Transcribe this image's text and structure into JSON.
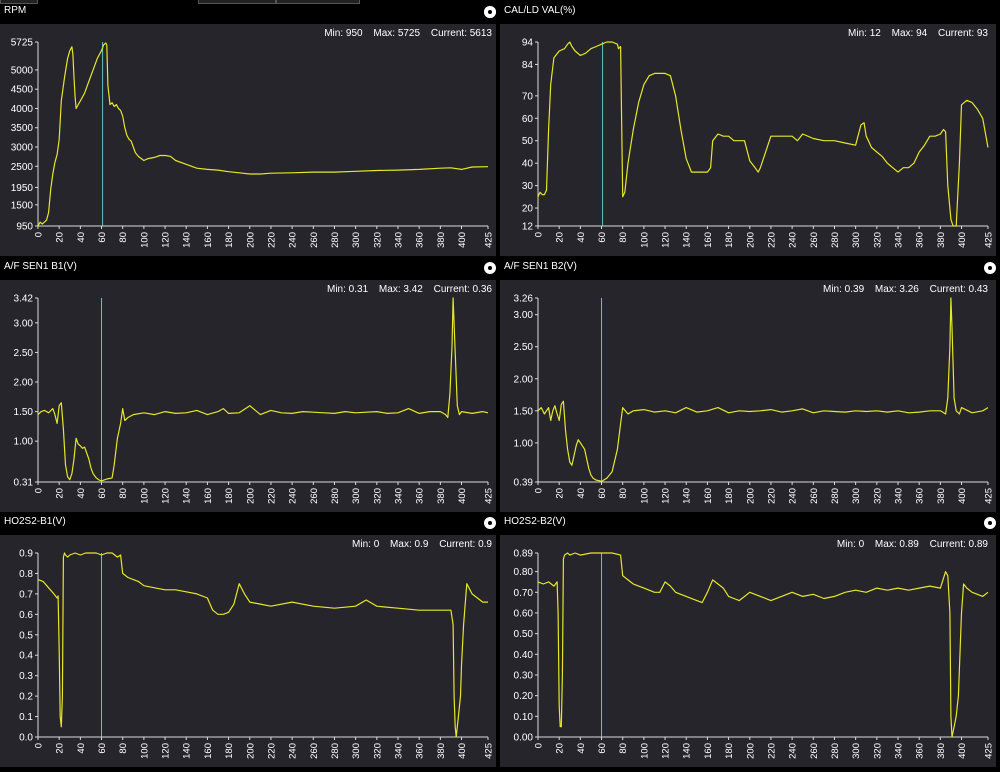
{
  "colors": {
    "background": "#000000",
    "plot_bg": "#25252b",
    "trace": "#e6e62a",
    "cursor": "#5fc7c7",
    "axis": "#dcdcdc"
  },
  "labels": {
    "min": "Min:",
    "max": "Max:",
    "current": "Current:"
  },
  "panels": [
    {
      "title": "RPM",
      "min": "950",
      "max": "5725",
      "current": "5613",
      "icon": "settings-dot-icon"
    },
    {
      "title": "CAL/LD VAL(%)",
      "min": "12",
      "max": "94",
      "current": "93",
      "icon": "settings-dot-icon"
    },
    {
      "title": "A/F SEN1 B1(V)",
      "min": "0.31",
      "max": "3.42",
      "current": "0.36",
      "icon": "settings-dot-icon"
    },
    {
      "title": "A/F SEN1 B2(V)",
      "min": "0.39",
      "max": "3.26",
      "current": "0.43",
      "icon": "settings-dot-icon"
    },
    {
      "title": "HO2S2-B1(V)",
      "min": "0",
      "max": "0.9",
      "current": "0.9",
      "icon": "settings-dot-icon"
    },
    {
      "title": "HO2S2-B2(V)",
      "min": "0",
      "max": "0.89",
      "current": "0.89",
      "icon": "settings-dot-icon"
    }
  ],
  "chart_data": [
    {
      "type": "line",
      "title": "RPM",
      "xlim": [
        0,
        425
      ],
      "ylim": [
        950,
        5725
      ],
      "xticks": [
        0,
        20,
        40,
        60,
        80,
        100,
        120,
        140,
        160,
        180,
        200,
        220,
        240,
        260,
        280,
        300,
        320,
        340,
        360,
        380,
        400,
        425
      ],
      "yticks": [
        {
          "v": 950,
          "t": "950"
        },
        {
          "v": 1500,
          "t": "1500"
        },
        {
          "v": 1950,
          "t": "1950"
        },
        {
          "v": 2500,
          "t": "2500"
        },
        {
          "v": 3000,
          "t": "3000"
        },
        {
          "v": 3500,
          "t": "3500"
        },
        {
          "v": 4000,
          "t": "4000"
        },
        {
          "v": 4500,
          "t": "4500"
        },
        {
          "v": 5000,
          "t": "5000"
        },
        {
          "v": 5725,
          "t": "5725"
        }
      ],
      "cursor_x": 61,
      "x": [
        0,
        2,
        4,
        8,
        10,
        12,
        14,
        16,
        18,
        20,
        22,
        25,
        28,
        30,
        32,
        33,
        34,
        35,
        36,
        38,
        40,
        44,
        48,
        52,
        56,
        60,
        62,
        64,
        65,
        66,
        68,
        70,
        72,
        74,
        76,
        78,
        80,
        82,
        84,
        86,
        88,
        90,
        92,
        95,
        100,
        104,
        110,
        115,
        120,
        125,
        130,
        140,
        150,
        160,
        170,
        180,
        190,
        200,
        210,
        220,
        240,
        260,
        280,
        300,
        320,
        340,
        360,
        380,
        390,
        400,
        410,
        425
      ],
      "y": [
        950,
        1050,
        1000,
        1100,
        1300,
        1900,
        2300,
        2600,
        2800,
        3200,
        4200,
        4800,
        5300,
        5500,
        5600,
        5400,
        4800,
        4300,
        4000,
        4100,
        4200,
        4400,
        4700,
        5000,
        5300,
        5500,
        5650,
        5700,
        5650,
        4600,
        4100,
        4150,
        4050,
        4100,
        4000,
        3950,
        3800,
        3500,
        3300,
        3200,
        3150,
        3000,
        2850,
        2750,
        2650,
        2700,
        2730,
        2780,
        2780,
        2760,
        2650,
        2550,
        2450,
        2420,
        2400,
        2360,
        2330,
        2300,
        2300,
        2320,
        2330,
        2350,
        2350,
        2370,
        2390,
        2400,
        2420,
        2450,
        2460,
        2420,
        2480,
        2490
      ]
    },
    {
      "type": "line",
      "title": "CAL/LD VAL(%)",
      "xlim": [
        0,
        425
      ],
      "ylim": [
        12,
        94
      ],
      "xticks": [
        0,
        20,
        40,
        60,
        80,
        100,
        120,
        140,
        160,
        180,
        200,
        220,
        240,
        260,
        280,
        300,
        320,
        340,
        360,
        380,
        400,
        425
      ],
      "yticks": [
        {
          "v": 12,
          "t": "12"
        },
        {
          "v": 20,
          "t": "20"
        },
        {
          "v": 30,
          "t": "30"
        },
        {
          "v": 40,
          "t": "40"
        },
        {
          "v": 50,
          "t": "50"
        },
        {
          "v": 60,
          "t": "60"
        },
        {
          "v": 70,
          "t": "70"
        },
        {
          "v": 84,
          "t": "84"
        },
        {
          "v": 94,
          "t": "94"
        }
      ],
      "cursor_x": 61,
      "x": [
        0,
        2,
        4,
        6,
        8,
        10,
        12,
        15,
        20,
        25,
        28,
        30,
        32,
        35,
        40,
        45,
        50,
        55,
        60,
        65,
        70,
        75,
        76,
        78,
        80,
        82,
        85,
        90,
        95,
        100,
        105,
        110,
        115,
        120,
        125,
        130,
        135,
        140,
        145,
        150,
        155,
        160,
        163,
        165,
        170,
        175,
        180,
        185,
        190,
        195,
        200,
        205,
        208,
        210,
        220,
        230,
        240,
        245,
        250,
        260,
        270,
        280,
        290,
        300,
        305,
        308,
        310,
        312,
        315,
        320,
        325,
        330,
        335,
        340,
        345,
        350,
        355,
        360,
        365,
        370,
        375,
        380,
        383,
        385,
        387,
        390,
        392,
        395,
        398,
        400,
        405,
        410,
        415,
        420,
        425
      ],
      "y": [
        25,
        27,
        26,
        26,
        28,
        55,
        75,
        87,
        90,
        91,
        93,
        94,
        92,
        90,
        88,
        89,
        91,
        92,
        93,
        94,
        94,
        93,
        91,
        92,
        25,
        27,
        40,
        55,
        67,
        75,
        79,
        80,
        80,
        80,
        79,
        70,
        55,
        42,
        36,
        36,
        36,
        36,
        38,
        50,
        53,
        52,
        52,
        50,
        50,
        50,
        41,
        38,
        36,
        38,
        52,
        52,
        52,
        50,
        53,
        51,
        50,
        50,
        49,
        48,
        57,
        58,
        52,
        50,
        47,
        45,
        43,
        40,
        38,
        36,
        38,
        38,
        40,
        45,
        48,
        52,
        52,
        53,
        55,
        54,
        30,
        15,
        12,
        12,
        40,
        66,
        68,
        67,
        64,
        60,
        47
      ]
    },
    {
      "type": "line",
      "title": "A/F SEN1 B1(V)",
      "xlim": [
        0,
        425
      ],
      "ylim": [
        0.31,
        3.42
      ],
      "xticks": [
        0,
        20,
        40,
        60,
        80,
        100,
        120,
        140,
        160,
        180,
        200,
        220,
        240,
        260,
        280,
        300,
        320,
        340,
        360,
        380,
        400,
        425
      ],
      "yticks": [
        {
          "v": 0.31,
          "t": "0.31"
        },
        {
          "v": 1.0,
          "t": "1.00"
        },
        {
          "v": 1.5,
          "t": "1.50"
        },
        {
          "v": 2.0,
          "t": "2.00"
        },
        {
          "v": 2.5,
          "t": "2.50"
        },
        {
          "v": 3.0,
          "t": "3.00"
        },
        {
          "v": 3.42,
          "t": "3.42"
        }
      ],
      "cursor_x": 60,
      "x": [
        0,
        3,
        6,
        10,
        14,
        16,
        18,
        20,
        22,
        24,
        26,
        28,
        30,
        32,
        34,
        36,
        38,
        40,
        42,
        44,
        46,
        48,
        50,
        52,
        55,
        58,
        60,
        62,
        65,
        70,
        72,
        75,
        78,
        80,
        82,
        85,
        90,
        100,
        110,
        120,
        130,
        140,
        150,
        160,
        170,
        175,
        180,
        190,
        200,
        210,
        220,
        230,
        240,
        250,
        260,
        270,
        280,
        290,
        300,
        310,
        320,
        330,
        340,
        350,
        360,
        370,
        380,
        385,
        387,
        389,
        391,
        392,
        394,
        396,
        398,
        400,
        410,
        420,
        425
      ],
      "y": [
        1.45,
        1.5,
        1.52,
        1.48,
        1.55,
        1.45,
        1.3,
        1.6,
        1.65,
        1.2,
        0.6,
        0.4,
        0.35,
        0.45,
        0.7,
        1.05,
        0.95,
        0.92,
        0.88,
        0.9,
        0.8,
        0.7,
        0.55,
        0.45,
        0.38,
        0.34,
        0.33,
        0.34,
        0.36,
        0.38,
        0.6,
        1.05,
        1.3,
        1.55,
        1.35,
        1.4,
        1.45,
        1.48,
        1.45,
        1.5,
        1.47,
        1.48,
        1.52,
        1.45,
        1.5,
        1.55,
        1.47,
        1.48,
        1.6,
        1.45,
        1.52,
        1.48,
        1.47,
        1.5,
        1.49,
        1.48,
        1.47,
        1.5,
        1.48,
        1.49,
        1.5,
        1.47,
        1.48,
        1.55,
        1.47,
        1.5,
        1.5,
        1.45,
        1.4,
        1.8,
        2.6,
        3.42,
        2.5,
        1.6,
        1.45,
        1.5,
        1.47,
        1.5,
        1.48
      ]
    },
    {
      "type": "line",
      "title": "A/F SEN1 B2(V)",
      "xlim": [
        0,
        425
      ],
      "ylim": [
        0.39,
        3.26
      ],
      "xticks": [
        0,
        20,
        40,
        60,
        80,
        100,
        120,
        140,
        160,
        180,
        200,
        220,
        240,
        260,
        280,
        300,
        320,
        340,
        360,
        380,
        400,
        425
      ],
      "yticks": [
        {
          "v": 0.39,
          "t": "0.39"
        },
        {
          "v": 1.0,
          "t": "1.00"
        },
        {
          "v": 1.5,
          "t": "1.50"
        },
        {
          "v": 2.0,
          "t": "2.00"
        },
        {
          "v": 2.5,
          "t": "2.50"
        },
        {
          "v": 3.0,
          "t": "3.00"
        },
        {
          "v": 3.26,
          "t": "3.26"
        }
      ],
      "cursor_x": 60,
      "x": [
        0,
        3,
        6,
        10,
        12,
        14,
        16,
        18,
        20,
        22,
        24,
        26,
        28,
        30,
        32,
        34,
        36,
        38,
        40,
        42,
        44,
        46,
        48,
        50,
        52,
        55,
        58,
        60,
        62,
        65,
        70,
        75,
        78,
        80,
        85,
        90,
        100,
        110,
        120,
        130,
        140,
        150,
        160,
        170,
        180,
        190,
        200,
        210,
        220,
        230,
        240,
        250,
        260,
        270,
        280,
        290,
        300,
        310,
        320,
        330,
        340,
        350,
        360,
        370,
        380,
        385,
        387,
        389,
        390,
        391,
        393,
        395,
        398,
        400,
        410,
        420,
        425
      ],
      "y": [
        1.5,
        1.55,
        1.45,
        1.55,
        1.35,
        1.5,
        1.58,
        1.45,
        1.35,
        1.6,
        1.65,
        1.2,
        0.9,
        0.7,
        0.65,
        0.8,
        0.95,
        1.05,
        1.0,
        0.95,
        0.9,
        0.75,
        0.6,
        0.5,
        0.45,
        0.42,
        0.41,
        0.4,
        0.42,
        0.45,
        0.55,
        0.9,
        1.3,
        1.55,
        1.45,
        1.5,
        1.52,
        1.48,
        1.5,
        1.47,
        1.55,
        1.48,
        1.5,
        1.55,
        1.47,
        1.5,
        1.49,
        1.5,
        1.52,
        1.48,
        1.5,
        1.53,
        1.47,
        1.5,
        1.49,
        1.48,
        1.5,
        1.49,
        1.5,
        1.48,
        1.5,
        1.47,
        1.48,
        1.5,
        1.5,
        1.45,
        1.7,
        2.5,
        3.26,
        2.8,
        1.7,
        1.5,
        1.45,
        1.55,
        1.47,
        1.5,
        1.55
      ]
    },
    {
      "type": "line",
      "title": "HO2S2-B1(V)",
      "xlim": [
        0,
        425
      ],
      "ylim": [
        0,
        0.9
      ],
      "xticks": [
        0,
        20,
        40,
        60,
        80,
        100,
        120,
        140,
        160,
        180,
        200,
        220,
        240,
        260,
        280,
        300,
        320,
        340,
        360,
        380,
        400,
        425
      ],
      "yticks": [
        {
          "v": 0,
          "t": "0.0"
        },
        {
          "v": 0.1,
          "t": "0.1"
        },
        {
          "v": 0.2,
          "t": "0.2"
        },
        {
          "v": 0.3,
          "t": "0.3"
        },
        {
          "v": 0.4,
          "t": "0.4"
        },
        {
          "v": 0.5,
          "t": "0.5"
        },
        {
          "v": 0.6,
          "t": "0.6"
        },
        {
          "v": 0.7,
          "t": "0.7"
        },
        {
          "v": 0.8,
          "t": "0.8"
        },
        {
          "v": 0.9,
          "t": "0.9"
        }
      ],
      "cursor_x": 60,
      "x": [
        0,
        5,
        10,
        15,
        18,
        19,
        20,
        21,
        22,
        23,
        24,
        25,
        26,
        28,
        30,
        35,
        40,
        45,
        50,
        55,
        60,
        65,
        70,
        75,
        78,
        80,
        85,
        90,
        95,
        100,
        110,
        120,
        130,
        140,
        150,
        160,
        165,
        170,
        175,
        180,
        185,
        190,
        195,
        200,
        210,
        220,
        240,
        260,
        280,
        300,
        310,
        320,
        340,
        360,
        380,
        390,
        392,
        393,
        394,
        395,
        397,
        399,
        400,
        402,
        405,
        410,
        415,
        420,
        425
      ],
      "y": [
        0.77,
        0.76,
        0.73,
        0.7,
        0.68,
        0.69,
        0.42,
        0.1,
        0.05,
        0.2,
        0.88,
        0.9,
        0.89,
        0.88,
        0.89,
        0.9,
        0.89,
        0.9,
        0.9,
        0.9,
        0.89,
        0.9,
        0.9,
        0.88,
        0.89,
        0.8,
        0.78,
        0.77,
        0.76,
        0.74,
        0.73,
        0.72,
        0.72,
        0.71,
        0.7,
        0.68,
        0.62,
        0.6,
        0.6,
        0.61,
        0.65,
        0.75,
        0.7,
        0.66,
        0.65,
        0.64,
        0.66,
        0.64,
        0.63,
        0.64,
        0.67,
        0.64,
        0.63,
        0.62,
        0.62,
        0.62,
        0.55,
        0.2,
        0.05,
        0.0,
        0.1,
        0.2,
        0.35,
        0.55,
        0.75,
        0.7,
        0.68,
        0.66,
        0.66
      ]
    },
    {
      "type": "line",
      "title": "HO2S2-B2(V)",
      "xlim": [
        0,
        425
      ],
      "ylim": [
        0,
        0.89
      ],
      "xticks": [
        0,
        20,
        40,
        60,
        80,
        100,
        120,
        140,
        160,
        180,
        200,
        220,
        240,
        260,
        280,
        300,
        320,
        340,
        360,
        380,
        400,
        425
      ],
      "yticks": [
        {
          "v": 0,
          "t": "0.00"
        },
        {
          "v": 0.1,
          "t": "0.10"
        },
        {
          "v": 0.2,
          "t": "0.20"
        },
        {
          "v": 0.3,
          "t": "0.30"
        },
        {
          "v": 0.4,
          "t": "0.40"
        },
        {
          "v": 0.5,
          "t": "0.50"
        },
        {
          "v": 0.6,
          "t": "0.60"
        },
        {
          "v": 0.7,
          "t": "0.70"
        },
        {
          "v": 0.8,
          "t": "0.80"
        },
        {
          "v": 0.89,
          "t": "0.89"
        }
      ],
      "cursor_x": 60,
      "x": [
        0,
        5,
        10,
        15,
        18,
        19,
        20,
        21,
        22,
        23,
        24,
        25,
        28,
        30,
        35,
        40,
        50,
        60,
        70,
        78,
        80,
        85,
        90,
        95,
        100,
        105,
        110,
        115,
        120,
        125,
        130,
        140,
        150,
        155,
        160,
        165,
        170,
        175,
        180,
        185,
        190,
        200,
        210,
        220,
        230,
        240,
        250,
        260,
        270,
        280,
        290,
        300,
        310,
        320,
        330,
        340,
        350,
        360,
        370,
        380,
        385,
        387,
        389,
        390,
        391,
        393,
        395,
        397,
        400,
        402,
        405,
        410,
        415,
        420,
        425
      ],
      "y": [
        0.75,
        0.74,
        0.75,
        0.73,
        0.75,
        0.6,
        0.15,
        0.05,
        0.05,
        0.3,
        0.86,
        0.88,
        0.89,
        0.88,
        0.89,
        0.88,
        0.89,
        0.89,
        0.89,
        0.88,
        0.78,
        0.76,
        0.74,
        0.73,
        0.72,
        0.71,
        0.7,
        0.7,
        0.75,
        0.73,
        0.7,
        0.68,
        0.66,
        0.65,
        0.7,
        0.76,
        0.74,
        0.72,
        0.68,
        0.67,
        0.66,
        0.7,
        0.68,
        0.66,
        0.68,
        0.7,
        0.68,
        0.69,
        0.67,
        0.68,
        0.7,
        0.71,
        0.7,
        0.72,
        0.71,
        0.72,
        0.71,
        0.72,
        0.73,
        0.72,
        0.8,
        0.78,
        0.6,
        0.1,
        0.0,
        0.05,
        0.1,
        0.2,
        0.6,
        0.74,
        0.72,
        0.7,
        0.69,
        0.68,
        0.7
      ]
    }
  ]
}
